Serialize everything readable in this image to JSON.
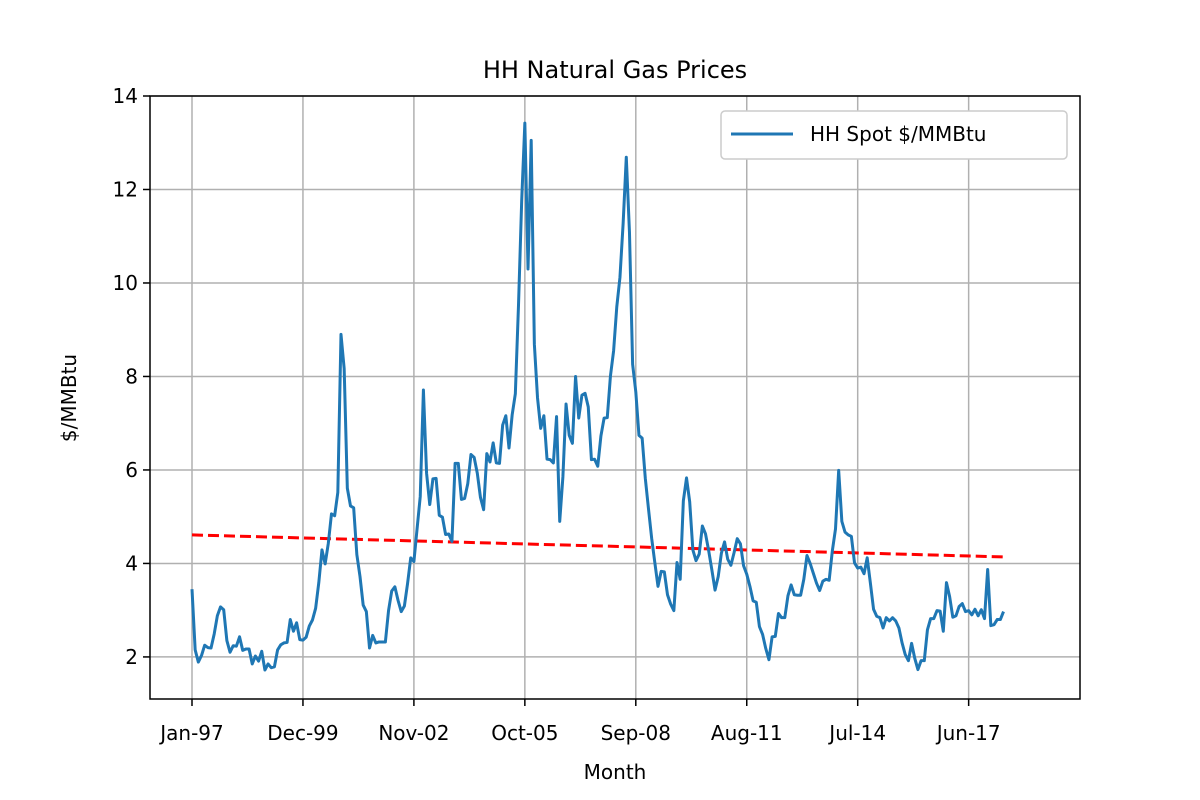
{
  "chart_data": {
    "type": "line",
    "title": "HH Natural Gas Prices",
    "xlabel": "Month",
    "ylabel": "$/MMBtu",
    "ylim": [
      1.1,
      14
    ],
    "yticks": [
      2,
      4,
      6,
      8,
      10,
      12,
      14
    ],
    "x_start": "Jan-97",
    "x_ticks": [
      "Jan-97",
      "Dec-99",
      "Nov-02",
      "Oct-05",
      "Sep-08",
      "Aug-11",
      "Jul-14",
      "Jun-17"
    ],
    "grid": true,
    "legend_position": "top-right",
    "colors": {
      "series": "#1f77b4",
      "trend": "#ff0000",
      "grid": "#b0b0b0"
    },
    "series": [
      {
        "name": "HH Spot $/MMBtu",
        "style": "solid",
        "values": [
          3.45,
          2.15,
          1.89,
          2.03,
          2.25,
          2.2,
          2.19,
          2.49,
          2.88,
          3.07,
          3.01,
          2.35,
          2.1,
          2.24,
          2.23,
          2.43,
          2.14,
          2.17,
          2.17,
          1.85,
          2.02,
          1.91,
          2.12,
          1.72,
          1.85,
          1.77,
          1.79,
          2.15,
          2.26,
          2.3,
          2.31,
          2.8,
          2.55,
          2.73,
          2.37,
          2.36,
          2.42,
          2.66,
          2.79,
          3.04,
          3.59,
          4.29,
          3.99,
          4.43,
          5.06,
          5.02,
          5.52,
          8.9,
          8.17,
          5.61,
          5.23,
          5.19,
          4.19,
          3.72,
          3.11,
          2.97,
          2.19,
          2.46,
          2.3,
          2.32,
          2.32,
          2.32,
          2.99,
          3.41,
          3.5,
          3.21,
          2.97,
          3.09,
          3.57,
          4.12,
          4.04,
          4.74,
          5.43,
          7.71,
          5.93,
          5.26,
          5.81,
          5.82,
          5.03,
          4.99,
          4.62,
          4.63,
          4.47,
          6.14,
          6.14,
          5.37,
          5.39,
          5.71,
          6.33,
          6.27,
          5.93,
          5.41,
          5.15,
          6.35,
          6.17,
          6.58,
          6.15,
          6.14,
          6.96,
          7.16,
          6.47,
          7.18,
          7.63,
          9.53,
          11.75,
          13.42,
          10.3,
          13.05,
          8.69,
          7.54,
          6.89,
          7.16,
          6.23,
          6.22,
          6.15,
          7.14,
          4.9,
          5.85,
          7.41,
          6.74,
          6.57,
          8.0,
          7.11,
          7.6,
          7.64,
          7.35,
          6.22,
          6.23,
          6.08,
          6.73,
          7.11,
          7.12,
          8.01,
          8.55,
          9.49,
          10.12,
          11.27,
          12.69,
          11.09,
          8.26,
          7.67,
          6.74,
          6.68,
          5.82,
          5.17,
          4.54,
          4.02,
          3.51,
          3.83,
          3.82,
          3.33,
          3.13,
          2.99,
          4.02,
          3.66,
          5.34,
          5.83,
          5.32,
          4.29,
          4.06,
          4.2,
          4.8,
          4.63,
          4.27,
          3.86,
          3.43,
          3.72,
          4.22,
          4.46,
          4.09,
          3.96,
          4.23,
          4.53,
          4.42,
          3.95,
          3.77,
          3.51,
          3.2,
          3.17,
          2.65,
          2.48,
          2.18,
          1.94,
          2.43,
          2.44,
          2.93,
          2.84,
          2.84,
          3.31,
          3.54,
          3.33,
          3.32,
          3.32,
          3.66,
          4.17,
          4.0,
          3.79,
          3.58,
          3.42,
          3.62,
          3.66,
          3.64,
          4.27,
          4.74,
          5.99,
          4.9,
          4.67,
          4.61,
          4.58,
          4.01,
          3.9,
          3.92,
          3.78,
          4.12,
          3.58,
          3.02,
          2.87,
          2.84,
          2.62,
          2.84,
          2.77,
          2.84,
          2.77,
          2.62,
          2.3,
          2.05,
          1.92,
          2.29,
          1.97,
          1.73,
          1.92,
          1.92,
          2.58,
          2.82,
          2.82,
          2.99,
          2.98,
          2.55,
          3.59,
          3.29,
          2.85,
          2.88,
          3.08,
          3.14,
          2.97,
          2.99,
          2.9,
          3.02,
          2.88,
          3.01,
          2.82,
          3.87,
          2.67,
          2.69,
          2.8,
          2.8,
          2.97
        ]
      },
      {
        "name": "",
        "style": "dashed",
        "start_value": 4.61,
        "end_value": 4.14
      }
    ]
  }
}
